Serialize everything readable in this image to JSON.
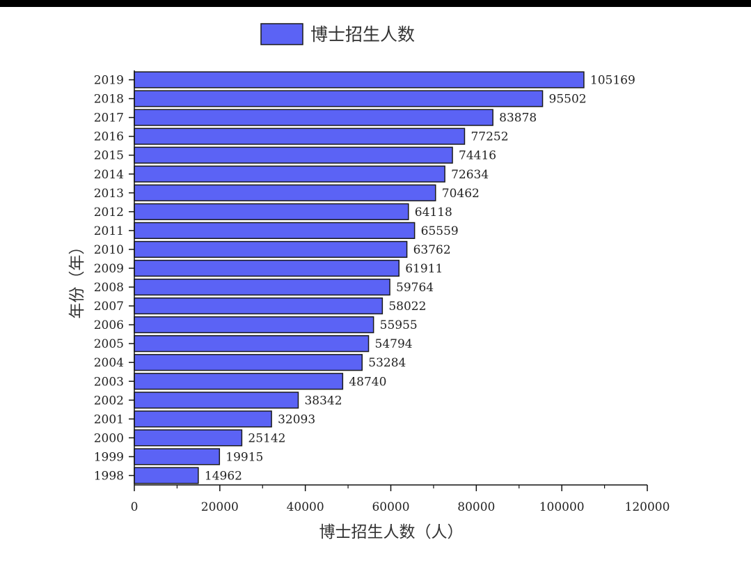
{
  "chart_data": {
    "type": "bar",
    "orientation": "horizontal",
    "categories": [
      "2019",
      "2018",
      "2017",
      "2016",
      "2015",
      "2014",
      "2013",
      "2012",
      "2011",
      "2010",
      "2009",
      "2008",
      "2007",
      "2006",
      "2005",
      "2004",
      "2003",
      "2002",
      "2001",
      "2000",
      "1999",
      "1998"
    ],
    "series": [
      {
        "name": "博士招生人数",
        "color": "#5b63f5",
        "values": [
          105169,
          95502,
          83878,
          77252,
          74416,
          72634,
          70462,
          64118,
          65559,
          63762,
          61911,
          59764,
          58022,
          55955,
          54794,
          53284,
          48740,
          38342,
          32093,
          25142,
          19915,
          14962
        ]
      }
    ],
    "data_labels": [
      "105169",
      "95502",
      "83878",
      "77252",
      "74416",
      "72634",
      "70462",
      "64118",
      "65559",
      "63762",
      "61911",
      "59764",
      "58022",
      "55955",
      "54794",
      "53284",
      "48740",
      "38342",
      "32093",
      "25142",
      "19915",
      "14962"
    ],
    "xlabel": "博士招生人数（人）",
    "ylabel": "年份（年）",
    "xlim": [
      0,
      120000
    ],
    "x_ticks": [
      0,
      20000,
      40000,
      60000,
      80000,
      100000,
      120000
    ],
    "x_tick_labels": [
      "0",
      "20000",
      "40000",
      "60000",
      "80000",
      "100000",
      "120000"
    ],
    "legend": {
      "position": "top-center",
      "label": "博士招生人数"
    },
    "grid": false
  }
}
